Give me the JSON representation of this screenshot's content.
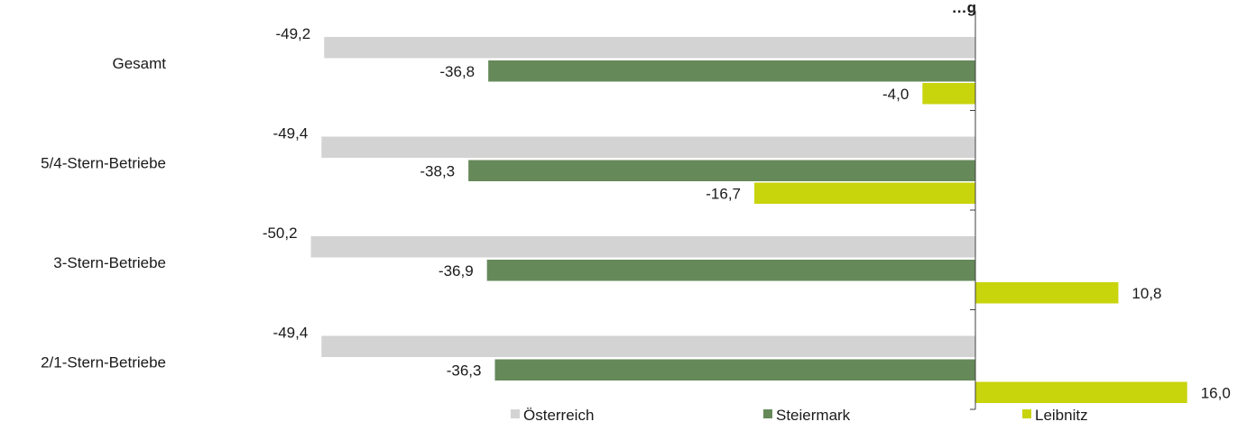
{
  "chart_data": {
    "type": "bar",
    "orientation": "horizontal",
    "title": "…g",
    "categories": [
      "Gesamt",
      "5/4-Stern-Betriebe",
      "3-Stern-Betriebe",
      "2/1-Stern-Betriebe"
    ],
    "series": [
      {
        "name": "Österreich",
        "color": "#d3d3d3",
        "values": [
          -49.2,
          -49.4,
          -50.2,
          -49.4
        ],
        "labels": [
          "-49,2",
          "-49,4",
          "-50,2",
          "-49,4"
        ]
      },
      {
        "name": "Steiermark",
        "color": "#66895a",
        "values": [
          -36.8,
          -38.3,
          -36.9,
          -36.3
        ],
        "labels": [
          "-36,8",
          "-38,3",
          "-36,9",
          "-36,3"
        ]
      },
      {
        "name": "Leibnitz",
        "color": "#c8d40c",
        "values": [
          -4.0,
          -16.7,
          10.8,
          16.0
        ],
        "labels": [
          "-4,0",
          "-16,7",
          "10,8",
          "16,0"
        ]
      }
    ],
    "xlim": [
      -55,
      20
    ],
    "grid": false,
    "legend": "bottom"
  }
}
